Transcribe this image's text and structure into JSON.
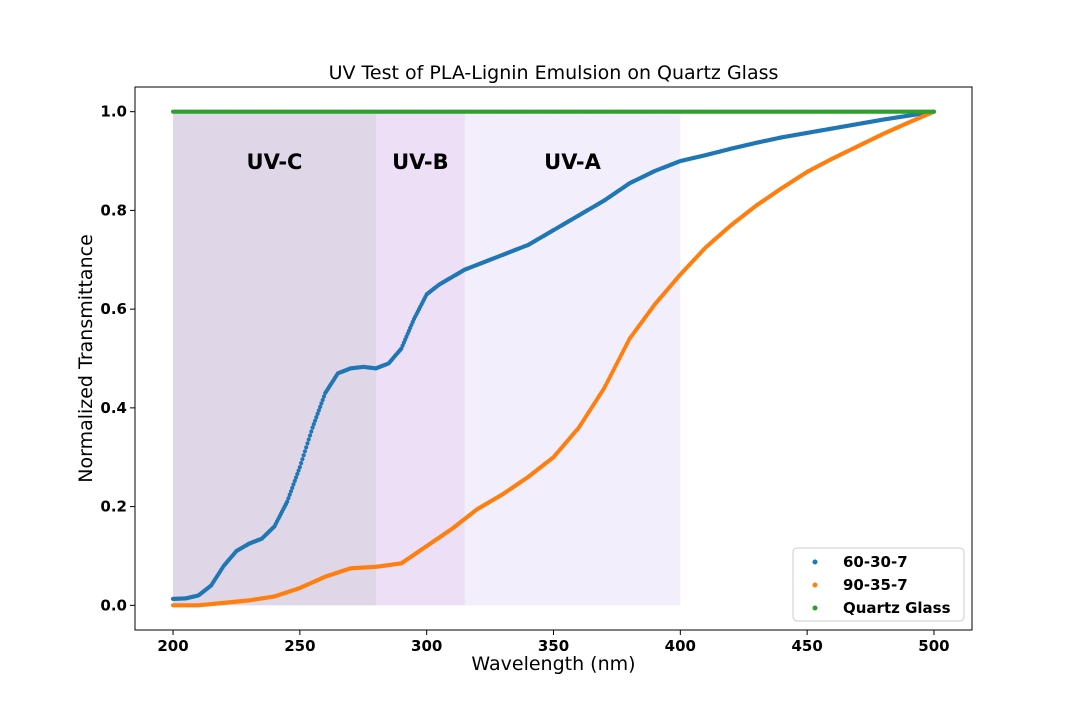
{
  "chart_data": {
    "type": "scatter",
    "title": "UV Test of PLA-Lignin Emulsion on Quartz Glass",
    "xlabel": "Wavelength (nm)",
    "ylabel": "Normalized Transmittance",
    "xlim": [
      185,
      515
    ],
    "ylim": [
      -0.05,
      1.05
    ],
    "xticks": [
      200,
      250,
      300,
      350,
      400,
      450,
      500
    ],
    "yticks": [
      0.0,
      0.2,
      0.4,
      0.6,
      0.8,
      1.0
    ],
    "xtick_labels": [
      "200",
      "250",
      "300",
      "350",
      "400",
      "450",
      "500"
    ],
    "ytick_labels": [
      "0.0",
      "0.2",
      "0.4",
      "0.6",
      "0.8",
      "1.0"
    ],
    "grid": false,
    "legend_position": "lower-right",
    "bands": [
      {
        "label": "UV-C",
        "x0": 200,
        "x1": 280,
        "color": "#8c6ba8",
        "opacity": 0.28
      },
      {
        "label": "UV-B",
        "x0": 280,
        "x1": 315,
        "color": "#b98be0",
        "opacity": 0.28
      },
      {
        "label": "UV-A",
        "x0": 315,
        "x1": 400,
        "color": "#cbbcf0",
        "opacity": 0.25
      }
    ],
    "series": [
      {
        "name": "60-30-7",
        "color": "#1f77b4",
        "x": [
          200,
          205,
          210,
          215,
          220,
          225,
          230,
          235,
          240,
          245,
          250,
          255,
          260,
          265,
          270,
          275,
          280,
          285,
          290,
          295,
          300,
          305,
          310,
          315,
          320,
          330,
          340,
          350,
          360,
          370,
          380,
          390,
          400,
          410,
          420,
          430,
          440,
          450,
          460,
          470,
          480,
          490,
          500
        ],
        "y": [
          0.013,
          0.014,
          0.02,
          0.04,
          0.08,
          0.11,
          0.125,
          0.135,
          0.16,
          0.21,
          0.28,
          0.36,
          0.43,
          0.47,
          0.48,
          0.483,
          0.48,
          0.49,
          0.52,
          0.58,
          0.63,
          0.65,
          0.665,
          0.68,
          0.69,
          0.71,
          0.73,
          0.76,
          0.79,
          0.82,
          0.855,
          0.88,
          0.9,
          0.912,
          0.925,
          0.937,
          0.948,
          0.957,
          0.966,
          0.975,
          0.984,
          0.992,
          1.0
        ]
      },
      {
        "name": "90-35-7",
        "color": "#ff7f0e",
        "x": [
          200,
          210,
          220,
          230,
          240,
          250,
          260,
          270,
          280,
          290,
          300,
          310,
          320,
          330,
          340,
          350,
          360,
          370,
          380,
          390,
          400,
          410,
          420,
          430,
          440,
          450,
          460,
          470,
          480,
          490,
          500
        ],
        "y": [
          0.0,
          0.0,
          0.005,
          0.01,
          0.018,
          0.035,
          0.058,
          0.075,
          0.078,
          0.085,
          0.12,
          0.155,
          0.195,
          0.225,
          0.26,
          0.3,
          0.36,
          0.44,
          0.54,
          0.61,
          0.67,
          0.725,
          0.77,
          0.81,
          0.845,
          0.878,
          0.905,
          0.93,
          0.955,
          0.978,
          1.0
        ]
      },
      {
        "name": "Quartz Glass",
        "color": "#2ca02c",
        "x": [
          200,
          500
        ],
        "y": [
          1.0,
          1.0
        ]
      }
    ]
  }
}
